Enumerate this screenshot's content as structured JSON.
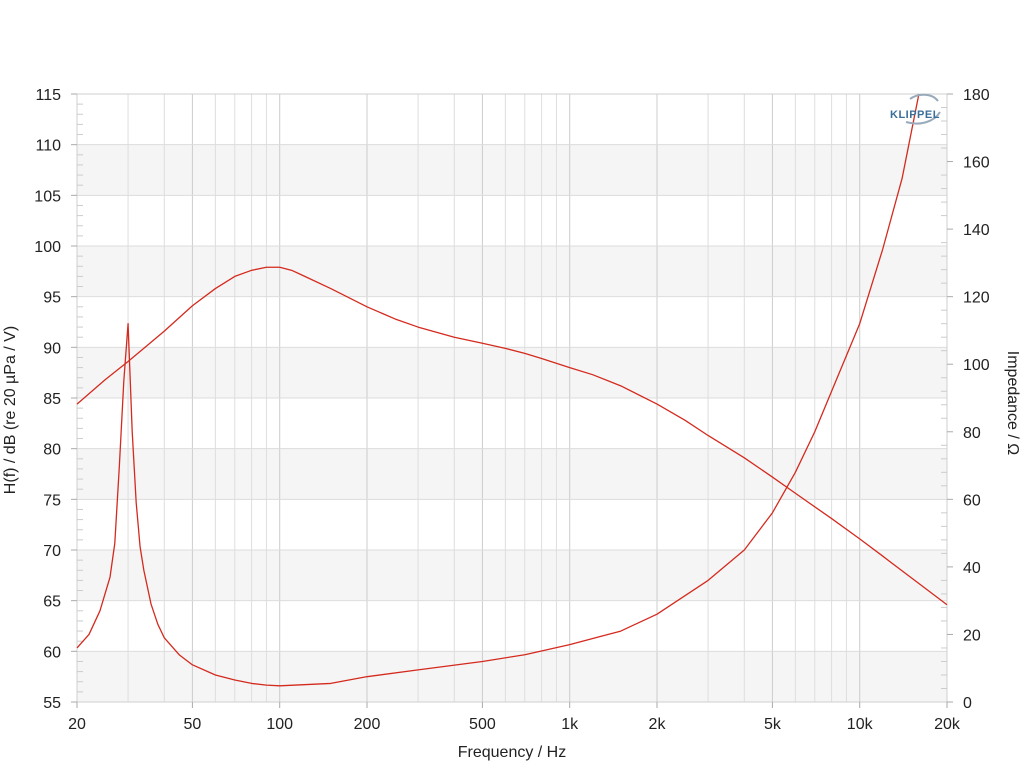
{
  "chart_data": {
    "type": "line",
    "xlabel": "Frequency / Hz",
    "ylabel_left": "H(f) / dB (re 20 µPa / V)",
    "ylabel_right": "Impedance / Ω",
    "x_scale": "log",
    "xlim": [
      20,
      20000
    ],
    "ylim_left": [
      55,
      115
    ],
    "ylim_right": [
      0,
      180
    ],
    "grid": true,
    "x_ticks": [
      {
        "value": 20,
        "label": "20"
      },
      {
        "value": 50,
        "label": "50"
      },
      {
        "value": 100,
        "label": "100"
      },
      {
        "value": 200,
        "label": "200"
      },
      {
        "value": 500,
        "label": "500"
      },
      {
        "value": 1000,
        "label": "1k"
      },
      {
        "value": 2000,
        "label": "2k"
      },
      {
        "value": 5000,
        "label": "5k"
      },
      {
        "value": 10000,
        "label": "10k"
      },
      {
        "value": 20000,
        "label": "20k"
      }
    ],
    "y_ticks_left": [
      "55",
      "60",
      "65",
      "70",
      "75",
      "80",
      "85",
      "90",
      "95",
      "100",
      "105",
      "110",
      "115"
    ],
    "y_ticks_right": [
      "0",
      "20",
      "40",
      "60",
      "80",
      "100",
      "120",
      "140",
      "160",
      "180"
    ],
    "series": [
      {
        "axis": "left",
        "color": "#d42a1e",
        "x": [
          20,
          25,
          30,
          35,
          40,
          50,
          60,
          70,
          80,
          90,
          100,
          110,
          120,
          150,
          200,
          250,
          300,
          400,
          500,
          600,
          700,
          800,
          1000,
          1200,
          1500,
          2000,
          2500,
          3000,
          4000,
          5000,
          6000,
          8000,
          10000,
          12000,
          15000,
          20000
        ],
        "y": [
          84.4,
          86.8,
          88.6,
          90.2,
          91.6,
          94.1,
          95.8,
          97.0,
          97.6,
          97.9,
          97.9,
          97.6,
          97.1,
          95.8,
          94.0,
          92.8,
          92.0,
          91.0,
          90.4,
          89.9,
          89.4,
          88.9,
          88.0,
          87.3,
          86.2,
          84.4,
          82.8,
          81.3,
          79.1,
          77.2,
          75.6,
          73.1,
          71.1,
          69.4,
          67.3,
          64.6
        ]
      },
      {
        "axis": "right",
        "color": "#d42a1e",
        "x": [
          20,
          22,
          24,
          26,
          27,
          28,
          29,
          30,
          31,
          32,
          33,
          34,
          36,
          38,
          40,
          45,
          50,
          60,
          70,
          80,
          90,
          100,
          150,
          200,
          300,
          500,
          700,
          1000,
          1500,
          2000,
          3000,
          4000,
          5000,
          6000,
          7000,
          8000,
          10000,
          12000,
          14000,
          16000
        ],
        "y": [
          16,
          20,
          27,
          37,
          47,
          70,
          95,
          112,
          80,
          59,
          46,
          39,
          29,
          23,
          19,
          14,
          11,
          8,
          6.5,
          5.5,
          5,
          4.8,
          5.5,
          7.5,
          9.5,
          12,
          14,
          17,
          21,
          26,
          36,
          45,
          56,
          68,
          80,
          92,
          112,
          134,
          155,
          180
        ]
      }
    ]
  }
}
